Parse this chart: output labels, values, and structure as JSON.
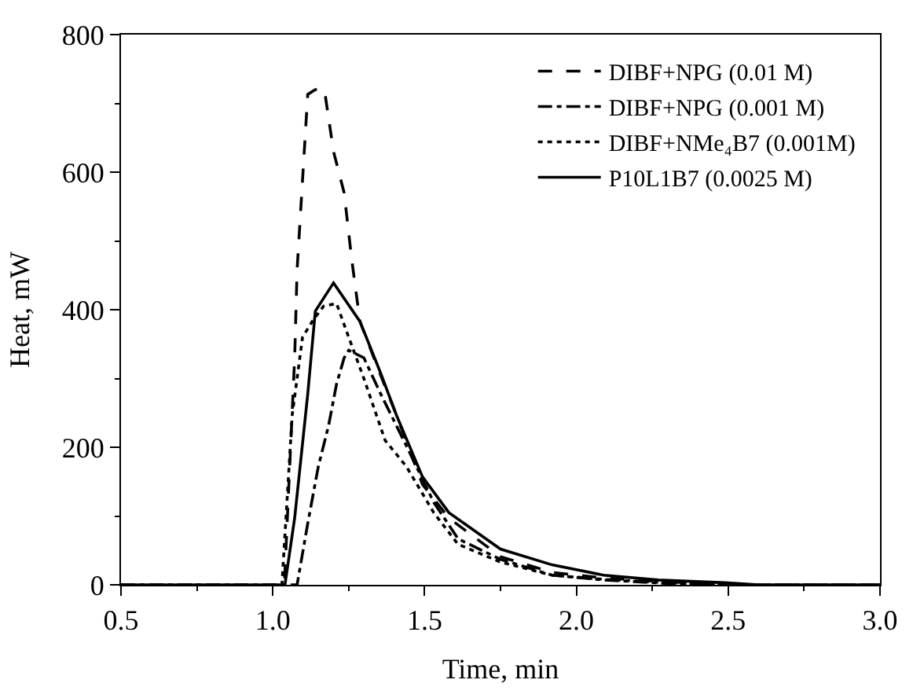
{
  "chart_data": {
    "type": "line",
    "xlabel": "Time, min",
    "ylabel": "Heat, mW",
    "xlim": [
      0.5,
      3.0
    ],
    "ylim": [
      0,
      800
    ],
    "xticks": [
      {
        "value": 0.5,
        "label": "0.5"
      },
      {
        "value": 1.0,
        "label": "1.0"
      },
      {
        "value": 1.5,
        "label": "1.5"
      },
      {
        "value": 2.0,
        "label": "2.0"
      },
      {
        "value": 2.5,
        "label": "2.5"
      },
      {
        "value": 3.0,
        "label": "3.0"
      }
    ],
    "yticks": [
      0,
      200,
      400,
      600,
      800
    ],
    "legend": "top right",
    "marker": "none",
    "series": [
      {
        "name": "DIBF+NPG (0.01 M)",
        "color": "#000000",
        "line_style": "dashed",
        "x": [
          0.5,
          1.0,
          1.038,
          1.072,
          1.08,
          1.115,
          1.14,
          1.17,
          1.2,
          1.235,
          1.26,
          1.287,
          1.34,
          1.407,
          1.493,
          1.58,
          1.75,
          1.92,
          2.09,
          2.27,
          2.5,
          3.0
        ],
        "values": [
          0,
          0,
          0,
          330,
          458,
          713,
          720,
          720,
          630,
          570,
          473,
          383,
          322,
          247,
          146,
          97,
          41,
          18,
          10,
          5,
          0,
          0
        ]
      },
      {
        "name": "DIBF+NPG (0.001 M)",
        "color": "#000000",
        "line_style": "dashdot",
        "x": [
          0.5,
          1.0,
          1.08,
          1.115,
          1.15,
          1.184,
          1.21,
          1.235,
          1.25,
          1.3,
          1.356,
          1.44,
          1.53,
          1.61,
          1.75,
          1.92,
          2.09,
          2.3,
          2.5,
          3.0
        ],
        "values": [
          0,
          0,
          0,
          89,
          172,
          232,
          292,
          330,
          341,
          330,
          277,
          202,
          120,
          67,
          37,
          14,
          7,
          2,
          0,
          0
        ]
      },
      {
        "name": "DIBF+NMe₄B7 (0.001M)",
        "color": "#000000",
        "line_style": "dotted",
        "x": [
          0.5,
          1.0,
          1.03,
          1.064,
          1.098,
          1.13,
          1.167,
          1.21,
          1.25,
          1.3,
          1.37,
          1.44,
          1.53,
          1.61,
          1.75,
          1.92,
          2.09,
          2.3,
          2.5,
          3.0
        ],
        "values": [
          0,
          0,
          0,
          247,
          360,
          383,
          405,
          409,
          360,
          300,
          210,
          172,
          105,
          59,
          33,
          14,
          8,
          3,
          0,
          0
        ]
      },
      {
        "name": "P10L1B7 (0.0025 M)",
        "color": "#000000",
        "line_style": "solid",
        "x": [
          0.5,
          1.0,
          1.04,
          1.072,
          1.115,
          1.14,
          1.2,
          1.287,
          1.356,
          1.407,
          1.493,
          1.58,
          1.75,
          1.92,
          2.09,
          2.27,
          2.49,
          2.6,
          3.0
        ],
        "values": [
          0,
          0,
          0,
          97,
          277,
          398,
          439,
          383,
          307,
          247,
          157,
          105,
          52,
          29,
          14,
          7,
          3,
          0,
          0
        ]
      }
    ]
  }
}
